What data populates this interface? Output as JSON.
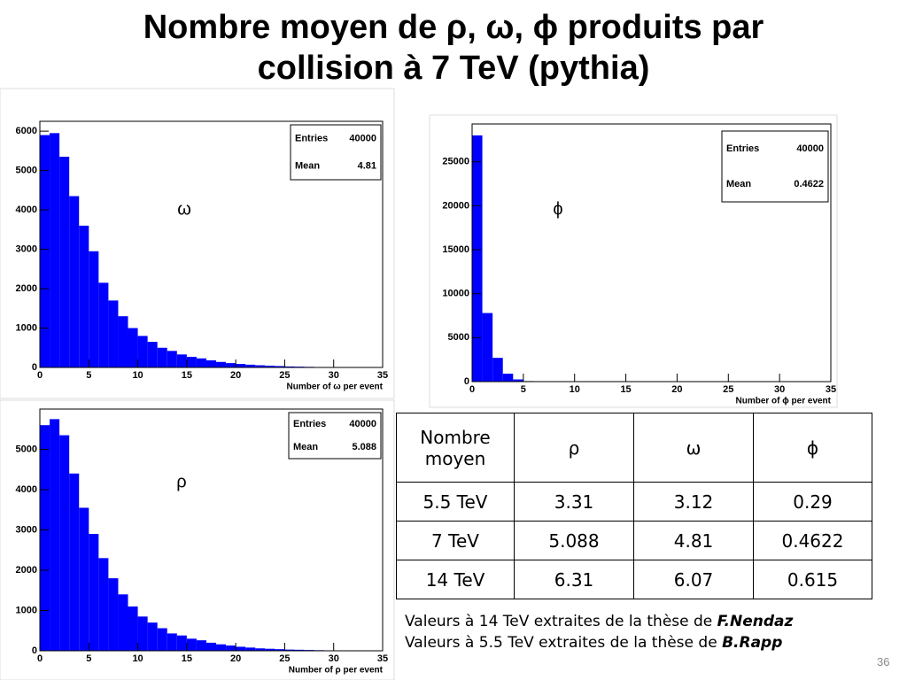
{
  "title": [
    "Nombre moyen de ρ, ω, ϕ produits par",
    "collision à 7 TeV (pythia)"
  ],
  "chart_data": [
    {
      "type": "histogram",
      "x_label": "Number of ω per event",
      "annotation": "ω",
      "color": "#0000ff",
      "stats": [
        [
          "Entries",
          "40000"
        ],
        [
          "Mean",
          "4.81"
        ]
      ],
      "bins": [
        0,
        1,
        2,
        3,
        4,
        5,
        6,
        7,
        8,
        9,
        10,
        11,
        12,
        13,
        14,
        15,
        16,
        17,
        18,
        19,
        20,
        21,
        22,
        23,
        24,
        25,
        26,
        27,
        28,
        29,
        30,
        31,
        32,
        33,
        34,
        35
      ],
      "values": [
        5900,
        5950,
        5350,
        4350,
        3600,
        2950,
        2150,
        1700,
        1300,
        1000,
        800,
        650,
        500,
        420,
        330,
        270,
        230,
        180,
        140,
        110,
        90,
        70,
        55,
        45,
        35,
        25,
        20,
        15,
        10,
        8,
        5,
        4,
        3,
        2,
        1
      ],
      "xlim": [
        0,
        35
      ],
      "xticks": [
        0,
        5,
        10,
        15,
        20,
        25,
        30,
        35
      ],
      "ylim": [
        0,
        6250
      ],
      "yticks": [
        0,
        1000,
        2000,
        3000,
        4000,
        5000,
        6000
      ]
    },
    {
      "type": "histogram",
      "x_label": "Number of ϕ per event",
      "annotation": "ϕ",
      "color": "#0000ff",
      "stats": [
        [
          "Entries",
          "40000"
        ],
        [
          "Mean",
          "0.4622"
        ]
      ],
      "bins": [
        0,
        1,
        2,
        3,
        4,
        5,
        6,
        7,
        8,
        9,
        10,
        11,
        12,
        13,
        14,
        15,
        16,
        17,
        18,
        19,
        20,
        21,
        22,
        23,
        24,
        25,
        26,
        27,
        28,
        29,
        30,
        31,
        32,
        33,
        34,
        35
      ],
      "values": [
        28000,
        7800,
        2700,
        900,
        250,
        60,
        15,
        0,
        0,
        0,
        0,
        0,
        0,
        0,
        0,
        0,
        0,
        0,
        0,
        0,
        0,
        0,
        0,
        0,
        0,
        0,
        0,
        0,
        0,
        0,
        0,
        0,
        0,
        0,
        0
      ],
      "xlim": [
        0,
        35
      ],
      "xticks": [
        0,
        5,
        10,
        15,
        20,
        25,
        30,
        35
      ],
      "ylim": [
        0,
        29300
      ],
      "yticks": [
        0,
        5000,
        10000,
        15000,
        20000,
        25000
      ]
    },
    {
      "type": "histogram",
      "x_label": "Number of ρ per event",
      "annotation": "ρ",
      "color": "#0000ff",
      "stats": [
        [
          "Entries",
          "40000"
        ],
        [
          "Mean",
          "5.088"
        ]
      ],
      "bins": [
        0,
        1,
        2,
        3,
        4,
        5,
        6,
        7,
        8,
        9,
        10,
        11,
        12,
        13,
        14,
        15,
        16,
        17,
        18,
        19,
        20,
        21,
        22,
        23,
        24,
        25,
        26,
        27,
        28,
        29,
        30,
        31,
        32,
        33,
        34,
        35
      ],
      "values": [
        5600,
        5750,
        5350,
        4400,
        3550,
        2900,
        2300,
        1800,
        1400,
        1100,
        850,
        700,
        560,
        430,
        380,
        300,
        260,
        200,
        160,
        130,
        100,
        80,
        60,
        50,
        40,
        30,
        25,
        20,
        15,
        10,
        8,
        6,
        4,
        3,
        2
      ],
      "xlim": [
        0,
        35
      ],
      "xticks": [
        0,
        5,
        10,
        15,
        20,
        25,
        30,
        35
      ],
      "ylim": [
        0,
        6000
      ],
      "yticks": [
        0,
        1000,
        2000,
        3000,
        4000,
        5000
      ]
    }
  ],
  "table": {
    "header": [
      "Nombre moyen",
      "ρ",
      "ω",
      "ϕ"
    ],
    "rows": [
      [
        "5.5 TeV",
        "3.31",
        "3.12",
        "0.29"
      ],
      [
        "7 TeV",
        "5.088",
        "4.81",
        "0.4622"
      ],
      [
        "14 TeV",
        "6.31",
        "6.07",
        "0.615"
      ]
    ]
  },
  "notes": [
    {
      "text": "Valeurs à 14 TeV extraites de la thèse de ",
      "author": "F.Nendaz"
    },
    {
      "text": "Valeurs à 5.5 TeV extraites de la thèse de  ",
      "author": "B.Rapp"
    }
  ],
  "page_number": "36"
}
